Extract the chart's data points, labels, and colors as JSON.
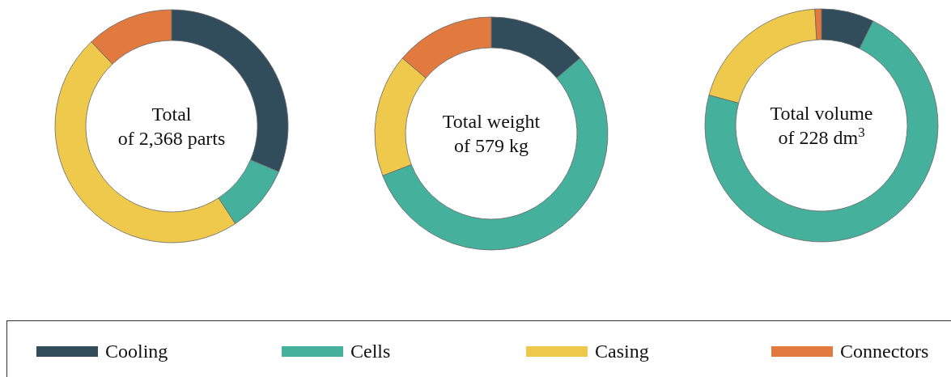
{
  "chart_data": [
    {
      "type": "donut",
      "title": "Total\nof 2,368 parts",
      "categories": [
        "Cooling",
        "Cells",
        "Casing",
        "Connectors"
      ],
      "values": [
        31.4,
        9.4,
        47.1,
        12.1
      ],
      "colors": [
        "#314d5c",
        "#45b19d",
        "#efc94c",
        "#e27a3f"
      ],
      "legend": "bottom"
    },
    {
      "type": "donut",
      "title": "Total weight\nof 579 kg",
      "categories": [
        null,
        null,
        null,
        null
      ],
      "values": [
        13.8,
        55.3,
        17.1,
        13.8
      ],
      "colors": [
        "#314d5c",
        "#45b19d",
        "#efc94c",
        "#e27a3f"
      ]
    },
    {
      "type": "donut",
      "title": "Total volume\nof 228 dm$^{3}$",
      "categories": [
        null,
        null,
        null,
        null
      ],
      "values": [
        7.3,
        71.9,
        19.9,
        0.9
      ],
      "colors": [
        "#314d5c",
        "#45b19d",
        "#efc94c",
        "#e27a3f"
      ]
    }
  ]
}
